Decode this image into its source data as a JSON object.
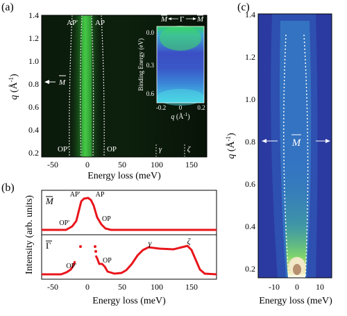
{
  "panels": {
    "a": {
      "label": "(a)",
      "ylabel_sym": "q",
      "ylabel_unit": "(Å",
      "ylabel_exp": "-1",
      "ylabel_close": ")",
      "xlabel": "Energy loss (meV)",
      "y_ticks": [
        "1.4",
        "1.2",
        "1.0",
        "0.8",
        "0.6",
        "0.4",
        "0.2"
      ],
      "x_ticks": [
        "-50",
        "0",
        "50",
        "100",
        "150"
      ],
      "annotations": {
        "ap_left": "AP'",
        "ap_right": "AP",
        "op_left": "OP'",
        "op_right": "OP",
        "gamma": "γ",
        "zeta": "ζ",
        "mbar": "M"
      },
      "inset": {
        "title_left": "M",
        "title_mid": "Γ",
        "title_right": "M",
        "ylabel": "Binding Energy (eV)",
        "xlabel_sym": "q",
        "xlabel_unit": "(Å",
        "xlabel_exp": "-1",
        "xlabel_close": ")",
        "y_ticks": [
          "0.0",
          "0.3",
          "0.6"
        ],
        "x_ticks": [
          "-0.2",
          "0",
          "0.2"
        ]
      }
    },
    "b": {
      "label": "(b)",
      "ylabel": "Intensity (arb. units)",
      "xlabel": "Energy loss (meV)",
      "x_ticks": [
        "-50",
        "0",
        "50",
        "100",
        "150"
      ],
      "top": {
        "point": "M",
        "ap_left": "AP'",
        "ap_right": "AP",
        "op_left": "OP'",
        "op_right": "OP"
      },
      "bottom": {
        "point": "Γ",
        "op_left": "OP'",
        "op_right": "OP",
        "gamma": "γ",
        "zeta": "ζ"
      }
    },
    "c": {
      "label": "(c)",
      "ylabel_sym": "q",
      "ylabel_unit": "(Å",
      "ylabel_exp": "-1",
      "ylabel_close": ")",
      "xlabel": "Energy loss (meV)",
      "y_ticks": [
        "1.4",
        "1.2",
        "1.0",
        "0.8",
        "0.6",
        "0.4",
        "0.2"
      ],
      "x_ticks": [
        "-10",
        "0",
        "10"
      ],
      "mbar": "M"
    }
  },
  "colors": {
    "curve": "#e8151b",
    "dark_green": "#0a1a08",
    "bright_green": "#39d33a",
    "map_blue": "#2a3fa8"
  }
}
